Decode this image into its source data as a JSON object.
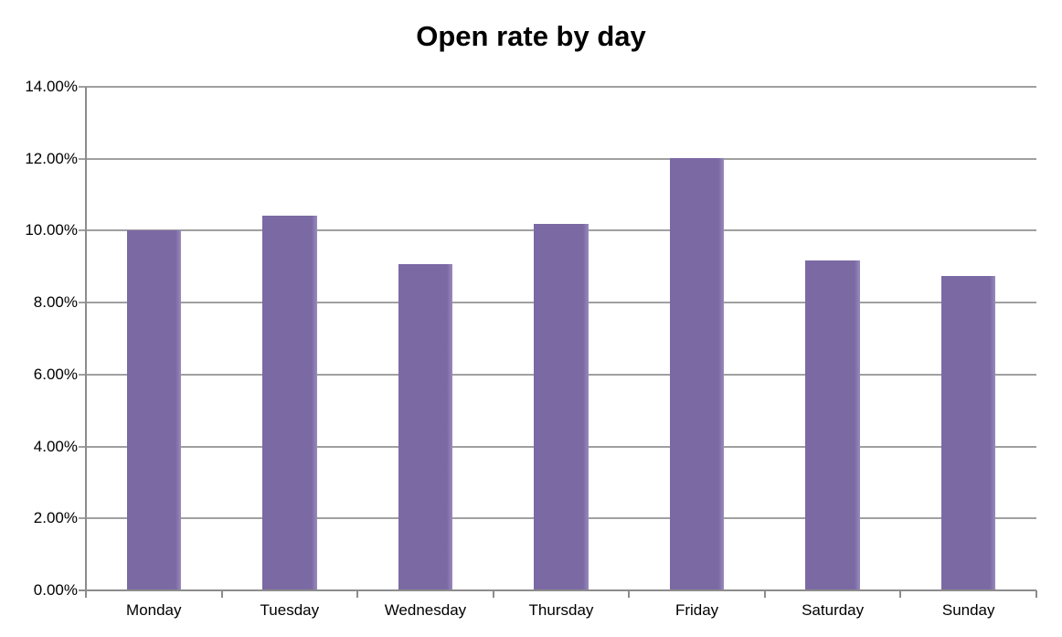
{
  "chart_data": {
    "type": "bar",
    "title": "Open rate by day",
    "categories": [
      "Monday",
      "Tuesday",
      "Wednesday",
      "Thursday",
      "Friday",
      "Saturday",
      "Sunday"
    ],
    "values": [
      10.02,
      10.43,
      9.08,
      10.18,
      12.03,
      9.17,
      8.75
    ],
    "value_unit": "%",
    "xlabel": "",
    "ylabel": "",
    "ylim": [
      0,
      14
    ],
    "ytick_step": 2,
    "ytick_labels": [
      "0.00%",
      "2.00%",
      "4.00%",
      "6.00%",
      "8.00%",
      "10.00%",
      "12.00%",
      "14.00%"
    ],
    "grid": true,
    "legend": false,
    "bar_gap_fraction": 0.6,
    "colors": {
      "bar_fill": "#7b69a4",
      "bar_edge_highlight": "#988bbd",
      "gridline": "#a0a0a0",
      "axis": "#8c8c8c",
      "text": "#000000",
      "title_text": "#000000",
      "background": "#ffffff"
    }
  }
}
